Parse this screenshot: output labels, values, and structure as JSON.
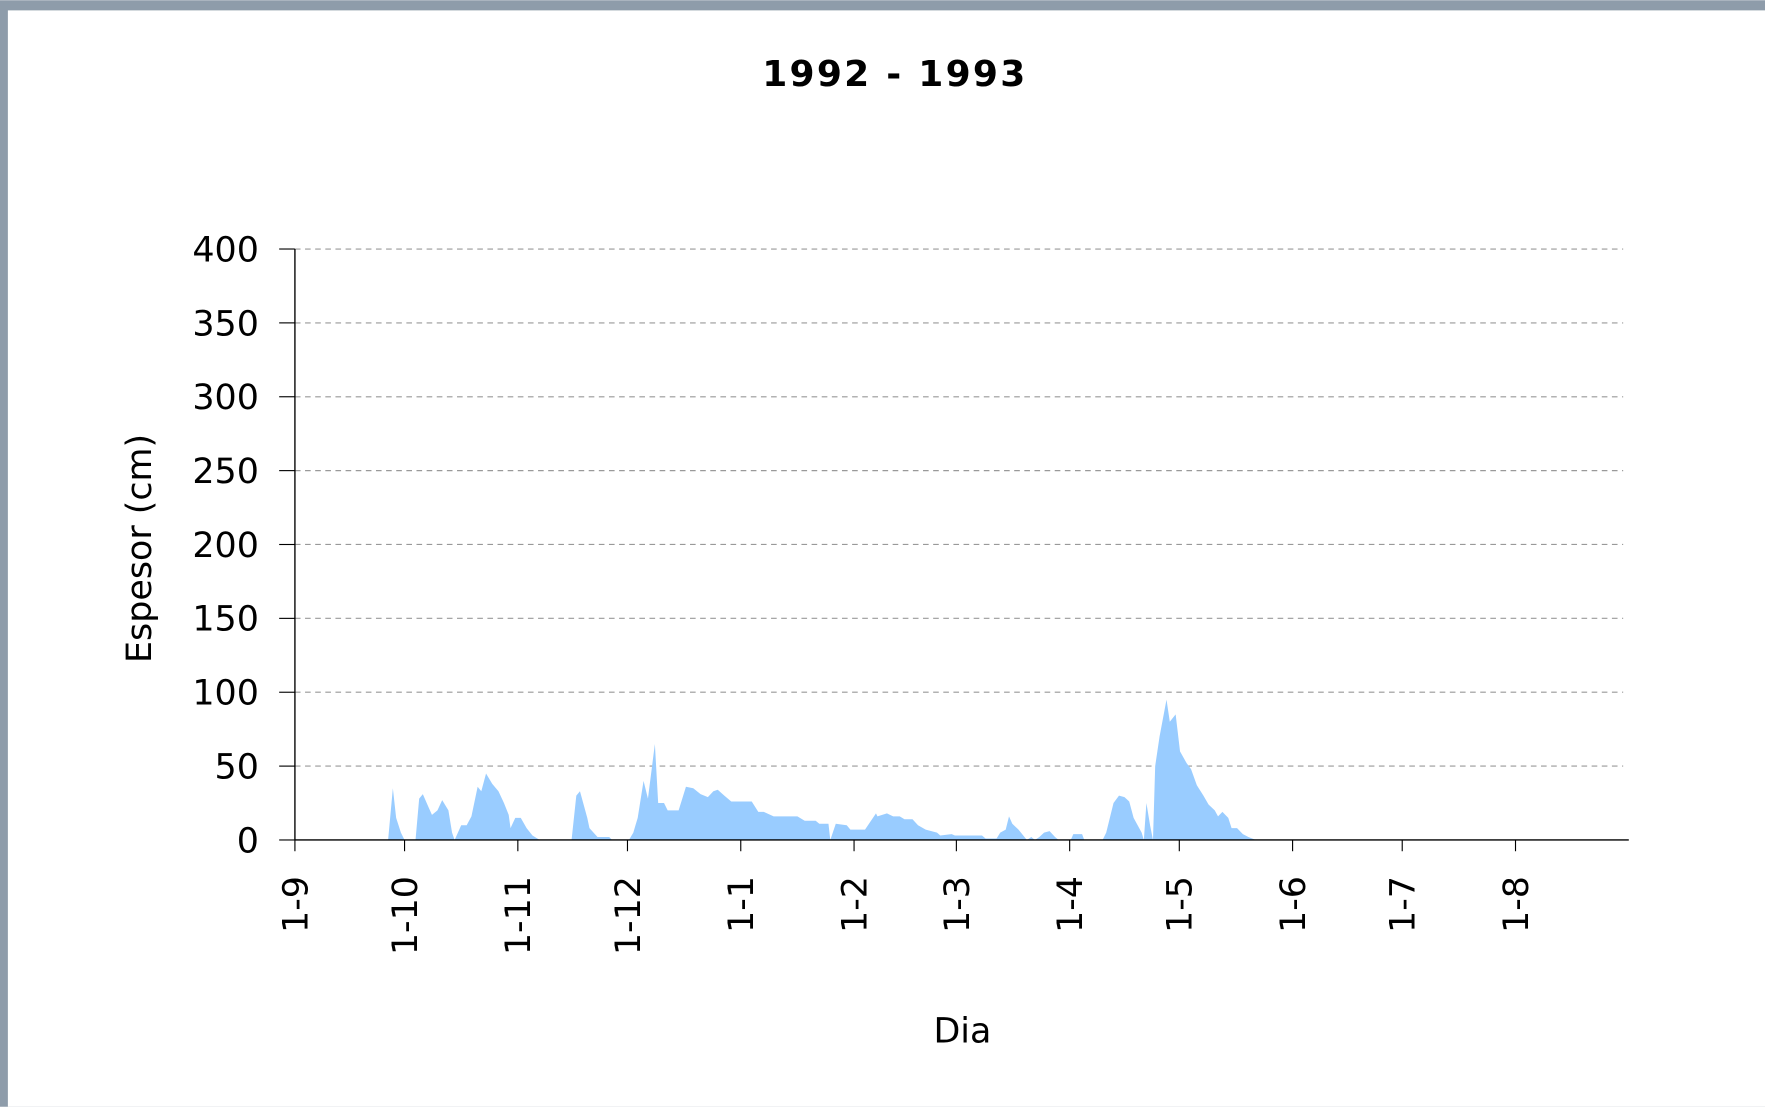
{
  "chart_data": {
    "type": "area",
    "title": "1992 - 1993",
    "xlabel": "Dia",
    "ylabel": "Espesor  (cm)",
    "color": "#99ccff",
    "grid": true,
    "xlim": [
      0,
      365
    ],
    "ylim": [
      0,
      400
    ],
    "yticks": [
      0,
      50,
      100,
      150,
      200,
      250,
      300,
      350,
      400
    ],
    "xticks": [
      {
        "value": 0,
        "label": "1-9"
      },
      {
        "value": 30,
        "label": "1-10"
      },
      {
        "value": 61,
        "label": "1-11"
      },
      {
        "value": 91,
        "label": "1-12"
      },
      {
        "value": 122,
        "label": "1-1"
      },
      {
        "value": 153,
        "label": "1-2"
      },
      {
        "value": 181,
        "label": "1-3"
      },
      {
        "value": 212,
        "label": "1-4"
      },
      {
        "value": 242,
        "label": "1-5"
      },
      {
        "value": 273,
        "label": "1-6"
      },
      {
        "value": 303,
        "label": "1-7"
      },
      {
        "value": 334,
        "label": "1-8"
      }
    ],
    "x": [
      0,
      25.5,
      26.8,
      27.7,
      29,
      30,
      33,
      34,
      35,
      36.6,
      37.5,
      39,
      40.3,
      42,
      43,
      43.7,
      44.6,
      45.5,
      47,
      48.3,
      50,
      51,
      52.3,
      54,
      55.7,
      57.2,
      58.5,
      59,
      60.3,
      61.8,
      63.4,
      65,
      67,
      75.7,
      77,
      78,
      80,
      80.6,
      82.8,
      86,
      86.8,
      91.4,
      92.6,
      93.8,
      95.4,
      96.6,
      98.5,
      99.4,
      101,
      102,
      105,
      107,
      109,
      111,
      113,
      114.5,
      115.7,
      117.5,
      119.4,
      125,
      126.8,
      128.3,
      131,
      137.5,
      139.5,
      142.5,
      143.5,
      146,
      146.5,
      148,
      151,
      152,
      156,
      159,
      159.4,
      162,
      163.7,
      165.5,
      166.8,
      169,
      170.5,
      172.6,
      175.7,
      176.6,
      179.7,
      180.6,
      188,
      189,
      192,
      193,
      194.5,
      195.4,
      196.3,
      198,
      200.3,
      201.5,
      202.5,
      203.7,
      205,
      206.5,
      208,
      209,
      212.3,
      213,
      215.4,
      216,
      221,
      222,
      224,
      225.5,
      227,
      228.3,
      229.5,
      231.7,
      232.3,
      233,
      234,
      234.8,
      235.4,
      236.6,
      238.5,
      239.4,
      241,
      242.2,
      244,
      245.2,
      246.8,
      248.6,
      250,
      251.7,
      252.6,
      253.8,
      255.4,
      256.3,
      257.8,
      259.4,
      260.9,
      263,
      365
    ],
    "values": [
      0,
      0,
      35,
      15,
      5,
      0,
      0,
      28,
      31,
      22,
      17,
      20,
      27,
      20,
      5,
      0,
      5,
      10,
      10,
      16,
      36,
      33,
      45,
      38,
      33,
      25,
      17,
      8,
      15,
      15,
      8,
      3,
      0,
      0,
      30,
      33,
      15,
      8,
      2,
      2,
      0,
      0,
      5,
      15,
      40,
      28,
      65,
      25,
      25,
      20,
      20,
      36,
      35,
      31,
      29,
      33,
      34,
      30,
      26,
      26,
      19,
      19,
      16,
      16,
      13,
      13,
      11,
      11,
      0,
      11,
      10,
      7,
      7,
      18,
      16,
      18,
      16,
      16,
      14,
      14,
      10,
      7,
      5,
      3,
      4,
      3,
      3,
      1,
      1,
      5,
      7,
      16,
      11,
      7,
      0,
      2,
      0,
      2,
      5,
      6,
      2,
      0,
      0,
      4,
      4,
      0,
      0,
      5,
      25,
      30,
      29,
      26,
      15,
      5,
      0,
      25,
      10,
      0,
      50,
      70,
      95,
      80,
      85,
      60,
      52,
      48,
      37,
      30,
      24,
      20,
      16,
      19,
      15,
      8,
      8,
      4,
      2,
      0,
      0
    ]
  }
}
